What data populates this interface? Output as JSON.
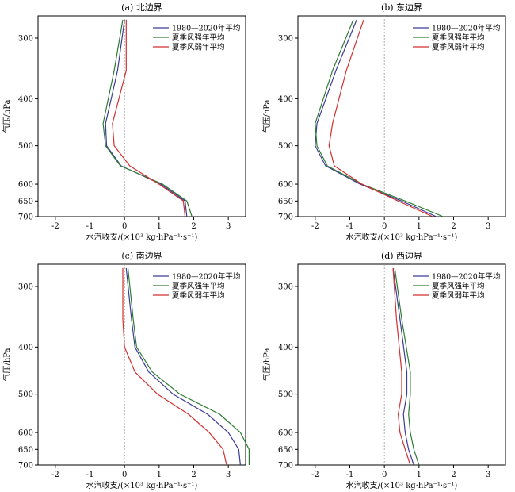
{
  "figure": {
    "background": "#ffffff"
  },
  "chart_data": [
    {
      "type": "line",
      "title": "(a) 北边界",
      "xlabel": "水汽收支/(×10³ kg·hPa⁻¹·s⁻¹)",
      "ylabel": "气压/hPa",
      "xlim": [
        -2.5,
        3.5
      ],
      "ylim": [
        270,
        700
      ],
      "yscale": "log",
      "inverted_y": true,
      "xticks": [
        -2,
        -1,
        0,
        1,
        2,
        3
      ],
      "yticks": [
        300,
        400,
        500,
        600,
        650,
        700
      ],
      "zero_line": true,
      "legend_position": "top-right",
      "y": [
        275,
        350,
        450,
        500,
        550,
        600,
        650,
        700
      ],
      "series": [
        {
          "name": "1980—2020年平均",
          "color": "#3b3b98",
          "x": [
            0.0,
            -0.2,
            -0.55,
            -0.52,
            -0.1,
            1.05,
            1.75,
            1.8
          ]
        },
        {
          "name": "夏季风强年平均",
          "color": "#2e7d32",
          "x": [
            -0.05,
            -0.3,
            -0.62,
            -0.55,
            -0.12,
            1.1,
            1.8,
            1.95
          ]
        },
        {
          "name": "夏季风弱年平均",
          "color": "#d32f2f",
          "x": [
            0.05,
            0.05,
            -0.35,
            -0.3,
            0.15,
            1.0,
            1.7,
            1.75
          ]
        }
      ]
    },
    {
      "type": "line",
      "title": "(b) 东边界",
      "xlabel": "水汽收支/(×10³ kg·hPa⁻¹·s⁻¹)",
      "ylabel": "气压/hPa",
      "xlim": [
        -2.5,
        3.5
      ],
      "ylim": [
        270,
        700
      ],
      "yscale": "log",
      "inverted_y": true,
      "xticks": [
        -2,
        -1,
        0,
        1,
        2,
        3
      ],
      "yticks": [
        300,
        400,
        500,
        600,
        650,
        700
      ],
      "zero_line": true,
      "legend_position": "top-right",
      "y": [
        275,
        350,
        450,
        500,
        550,
        600,
        650,
        700
      ],
      "series": [
        {
          "name": "1980—2020年平均",
          "color": "#3b3b98",
          "x": [
            -0.8,
            -1.4,
            -1.95,
            -2.0,
            -1.7,
            -0.7,
            0.5,
            1.5
          ]
        },
        {
          "name": "夏季风强年平均",
          "color": "#2e7d32",
          "x": [
            -0.9,
            -1.5,
            -2.0,
            -1.95,
            -1.65,
            -0.65,
            0.6,
            1.7
          ]
        },
        {
          "name": "夏季风弱年平均",
          "color": "#d32f2f",
          "x": [
            -0.6,
            -1.1,
            -1.5,
            -1.6,
            -1.45,
            -0.65,
            0.4,
            1.4
          ]
        }
      ]
    },
    {
      "type": "line",
      "title": "(c) 南边界",
      "xlabel": "水汽收支/(×10³ kg·hPa⁻¹·s⁻¹)",
      "ylabel": "气压/hPa",
      "xlim": [
        -2.5,
        3.5
      ],
      "ylim": [
        270,
        700
      ],
      "yscale": "log",
      "inverted_y": true,
      "xticks": [
        -2,
        -1,
        0,
        1,
        2,
        3
      ],
      "yticks": [
        300,
        400,
        500,
        600,
        650,
        700
      ],
      "zero_line": true,
      "legend_position": "top-right",
      "y": [
        275,
        350,
        400,
        450,
        500,
        550,
        600,
        650,
        700
      ],
      "series": [
        {
          "name": "1980—2020年平均",
          "color": "#3b3b98",
          "x": [
            0.05,
            0.2,
            0.3,
            0.7,
            1.4,
            2.4,
            3.0,
            3.3,
            3.35
          ]
        },
        {
          "name": "夏季风强年平均",
          "color": "#2e7d32",
          "x": [
            0.1,
            0.25,
            0.35,
            0.8,
            1.6,
            2.75,
            3.35,
            3.6,
            3.6
          ]
        },
        {
          "name": "夏季风弱年平均",
          "color": "#d32f2f",
          "x": [
            -0.05,
            -0.05,
            0.0,
            0.3,
            0.95,
            1.85,
            2.45,
            2.85,
            2.95
          ]
        }
      ]
    },
    {
      "type": "line",
      "title": "(d) 西边界",
      "xlabel": "水汽收支/(×10³ kg·hPa⁻¹·s⁻¹)",
      "ylabel": "气压/hPa",
      "xlim": [
        -2.5,
        3.5
      ],
      "ylim": [
        270,
        700
      ],
      "yscale": "log",
      "inverted_y": true,
      "xticks": [
        -2,
        -1,
        0,
        1,
        2,
        3
      ],
      "yticks": [
        300,
        400,
        500,
        600,
        650,
        700
      ],
      "zero_line": true,
      "legend_position": "top-right",
      "y": [
        275,
        350,
        450,
        500,
        550,
        600,
        650,
        700
      ],
      "series": [
        {
          "name": "1980—2020年平均",
          "color": "#3b3b98",
          "x": [
            0.25,
            0.45,
            0.65,
            0.65,
            0.55,
            0.6,
            0.7,
            0.85
          ]
        },
        {
          "name": "夏季风强年平均",
          "color": "#2e7d32",
          "x": [
            0.3,
            0.5,
            0.75,
            0.75,
            0.7,
            0.75,
            0.85,
            1.0
          ]
        },
        {
          "name": "夏季风弱年平均",
          "color": "#d32f2f",
          "x": [
            0.25,
            0.35,
            0.5,
            0.5,
            0.4,
            0.45,
            0.6,
            0.75
          ]
        }
      ]
    }
  ]
}
